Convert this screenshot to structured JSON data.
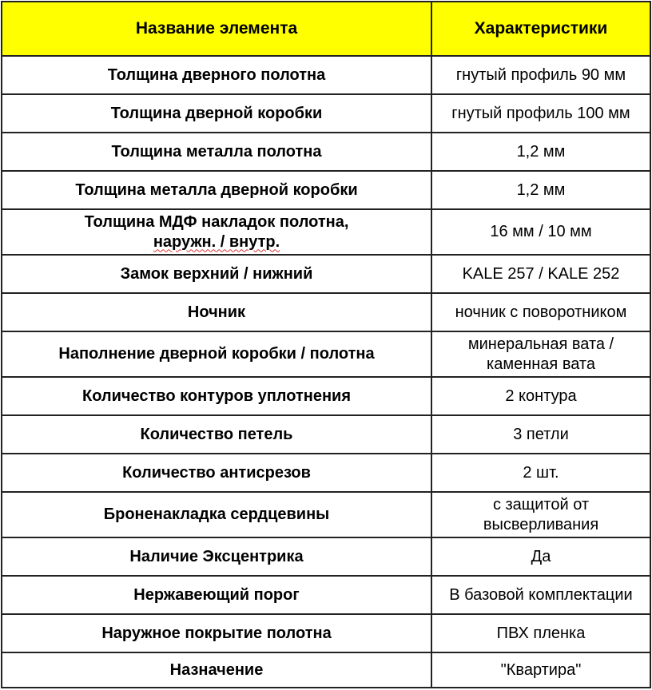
{
  "header": {
    "name": "Название элемента",
    "value": "Характеристики",
    "background": "#ffff00"
  },
  "rows": [
    {
      "name": "Толщина дверного полотна",
      "value": "гнутый профиль 90 мм"
    },
    {
      "name": "Толщина дверной коробки",
      "value": "гнутый профиль 100 мм"
    },
    {
      "name": "Толщина металла полотна",
      "value": "1,2 мм"
    },
    {
      "name": "Толщина металла дверной коробки",
      "value": "1,2 мм"
    },
    {
      "name": "Толщина МДФ накладок полотна,",
      "name2": "наружн. / внутр.",
      "value": "16 мм / 10 мм"
    },
    {
      "name": "Замок верхний / нижний",
      "value": "KALE 257 / KALE 252"
    },
    {
      "name": "Ночник",
      "value": "ночник с поворотником"
    },
    {
      "name": "Наполнение дверной коробки / полотна",
      "value": "минеральная вата /",
      "value2": "каменная вата"
    },
    {
      "name": "Количество контуров уплотнения",
      "value": "2 контура"
    },
    {
      "name": "Количество петель",
      "value": "3 петли"
    },
    {
      "name": "Количество антисрезов",
      "value": "2 шт."
    },
    {
      "name": "Броненакладка сердцевины",
      "value": "с защитой от",
      "value2": "высверливания"
    },
    {
      "name": "Наличие Эксцентрика",
      "value": "Да"
    },
    {
      "name": "Нержавеющий порог",
      "value": "В базовой комплектации"
    },
    {
      "name": "Наружное покрытие полотна",
      "value": "ПВХ пленка"
    },
    {
      "name": "Назначение",
      "value": "\"Квартира\""
    }
  ]
}
